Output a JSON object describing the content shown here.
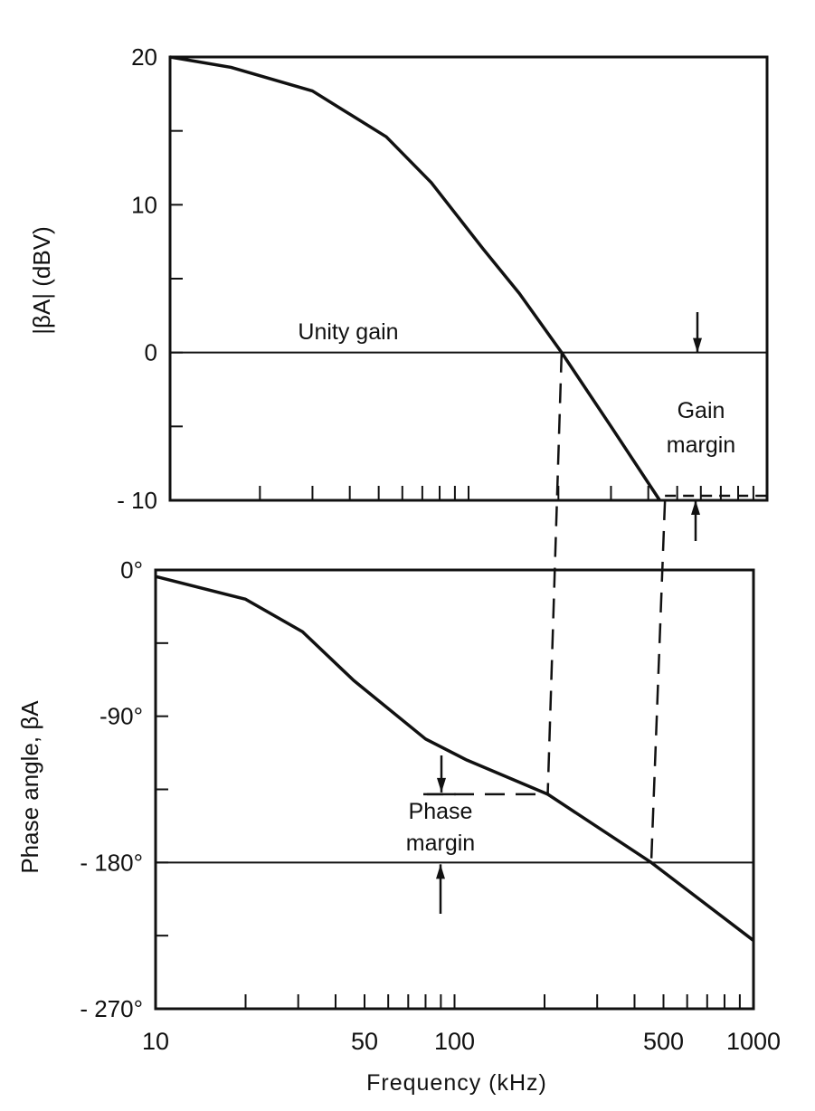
{
  "chart_data": [
    {
      "type": "line",
      "ylabel": "|βA| (dBV)",
      "xscale": "log",
      "xlim": [
        10,
        1000
      ],
      "ylim": [
        -10,
        20
      ],
      "yticks": [
        20,
        10,
        0,
        -10
      ],
      "ytick_labels": [
        "20",
        "10",
        "0",
        "- 10"
      ],
      "grid": false,
      "series": [
        {
          "x": [
            10,
            16,
            30,
            53,
            75,
            112,
            148,
            205,
            300,
            437
          ],
          "y": [
            20,
            19.3,
            17.7,
            14.6,
            11.5,
            7,
            4,
            0,
            -5,
            -10
          ]
        }
      ],
      "annotations": {
        "unity_gain": "Unity gain",
        "gain_margin_line1": "Gain",
        "gain_margin_line2": "margin",
        "gain_margin_db": 10
      }
    },
    {
      "type": "line",
      "ylabel": "Phase angle, βA",
      "xlabel": "Frequency (kHz)",
      "xscale": "log",
      "xlim": [
        10,
        1000
      ],
      "ylim": [
        -270,
        0
      ],
      "yticks": [
        0,
        -90,
        -180,
        -270
      ],
      "ytick_labels": [
        "0°",
        "-90°",
        "- 180°",
        "- 270°"
      ],
      "xticks": [
        10,
        50,
        100,
        500,
        1000
      ],
      "xtick_labels": [
        "10",
        "50",
        "100",
        "500",
        "1000"
      ],
      "grid": false,
      "series": [
        {
          "x": [
            10,
            20,
            31,
            46,
            80,
            110,
            205,
            455,
            1000
          ],
          "y": [
            -4,
            -18,
            -38,
            -68,
            -104,
            -117,
            -138,
            -180,
            -228
          ]
        }
      ],
      "annotations": {
        "phase_margin_line1": "Phase",
        "phase_margin_line2": "margin",
        "phase_margin_deg": 42
      }
    }
  ],
  "markers": {
    "gain_crossover_khz": 205,
    "phase_crossover_khz": 455
  }
}
